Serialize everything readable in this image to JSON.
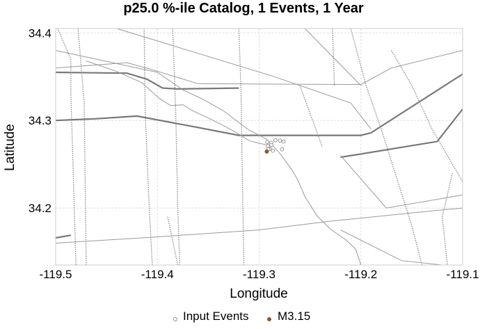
{
  "chart_data": {
    "type": "scatter",
    "title": "p25.0 %-ile Catalog, 1 Events, 1 Year",
    "xlabel": "Longitude",
    "ylabel": "Latitude",
    "xlim": [
      -119.5,
      -119.1
    ],
    "ylim": [
      34.135,
      34.405
    ],
    "grid": true,
    "legend_placement": "bottom-center",
    "x_ticks": [
      {
        "value": -119.5,
        "label": "-119.5"
      },
      {
        "value": -119.4,
        "label": "-119.4"
      },
      {
        "value": -119.3,
        "label": "-119.3"
      },
      {
        "value": -119.2,
        "label": "-119.2"
      },
      {
        "value": -119.1,
        "label": "-119.1"
      }
    ],
    "y_ticks": [
      {
        "value": 34.2,
        "label": "34.2"
      },
      {
        "value": 34.3,
        "label": "34.3"
      },
      {
        "value": 34.4,
        "label": "34.4"
      }
    ],
    "series": [
      {
        "name": "Input Events",
        "marker": "open-circle",
        "color": "#888888",
        "points": [
          [
            -119.292,
            34.2755
          ],
          [
            -119.288,
            34.2745
          ],
          [
            -119.284,
            34.2775
          ],
          [
            -119.2795,
            34.277
          ],
          [
            -119.276,
            34.276
          ],
          [
            -119.2915,
            34.271
          ],
          [
            -119.288,
            34.272
          ],
          [
            -119.2895,
            34.2675
          ],
          [
            -119.2865,
            34.2655
          ],
          [
            -119.2775,
            34.267
          ],
          [
            -119.291,
            34.2675
          ]
        ]
      },
      {
        "name": "M3.15",
        "marker": "filled-circle",
        "color": "#8b5a2b",
        "points": [
          [
            -119.2925,
            34.2645
          ]
        ]
      }
    ],
    "map_lines": [
      {
        "style": "thick",
        "points": [
          [
            -119.5,
            34.355
          ],
          [
            -119.43,
            34.354
          ],
          [
            -119.41,
            34.347
          ],
          [
            -119.395,
            34.337
          ],
          [
            -119.38,
            34.336
          ],
          [
            -119.32,
            34.337
          ]
        ]
      },
      {
        "style": "thick",
        "points": [
          [
            -119.5,
            34.3
          ],
          [
            -119.46,
            34.302
          ],
          [
            -119.42,
            34.305
          ],
          [
            -119.36,
            34.292
          ],
          [
            -119.32,
            34.283
          ],
          [
            -119.2,
            34.283
          ],
          [
            -119.19,
            34.286
          ],
          [
            -119.1,
            34.353
          ]
        ]
      },
      {
        "style": "thick",
        "points": [
          [
            -119.5,
            34.166
          ],
          [
            -119.485,
            34.169
          ]
        ]
      },
      {
        "style": "thick",
        "points": [
          [
            -119.22,
            34.258
          ],
          [
            -119.125,
            34.276
          ],
          [
            -119.1,
            34.313
          ]
        ]
      },
      {
        "style": "thin",
        "points": [
          [
            -119.5,
            34.38
          ],
          [
            -119.4,
            34.355
          ],
          [
            -119.375,
            34.335
          ],
          [
            -119.355,
            34.324
          ],
          [
            -119.335,
            34.311
          ],
          [
            -119.31,
            34.289
          ],
          [
            -119.293,
            34.279
          ],
          [
            -119.28,
            34.263
          ],
          [
            -119.268,
            34.244
          ],
          [
            -119.262,
            34.232
          ],
          [
            -119.255,
            34.213
          ],
          [
            -119.243,
            34.191
          ],
          [
            -119.23,
            34.176
          ],
          [
            -119.215,
            34.164
          ],
          [
            -119.205,
            34.153
          ],
          [
            -119.2,
            34.135
          ]
        ]
      },
      {
        "style": "thin",
        "points": [
          [
            -119.47,
            34.368
          ],
          [
            -119.44,
            34.356
          ],
          [
            -119.415,
            34.343
          ],
          [
            -119.398,
            34.325
          ],
          [
            -119.387,
            34.317
          ],
          [
            -119.375,
            34.318
          ],
          [
            -119.365,
            34.311
          ],
          [
            -119.352,
            34.304
          ],
          [
            -119.338,
            34.296
          ],
          [
            -119.322,
            34.286
          ],
          [
            -119.31,
            34.277
          ],
          [
            -119.3,
            34.274
          ],
          [
            -119.292,
            34.272
          ]
        ]
      },
      {
        "style": "thin",
        "points": [
          [
            -119.5,
            34.16
          ],
          [
            -119.415,
            34.166
          ],
          [
            -119.3,
            34.175
          ],
          [
            -119.23,
            34.185
          ],
          [
            -119.12,
            34.198
          ],
          [
            -119.1,
            34.2
          ]
        ]
      },
      {
        "style": "thin",
        "points": [
          [
            -119.5,
            34.36
          ],
          [
            -119.43,
            34.366
          ],
          [
            -119.405,
            34.358
          ],
          [
            -119.36,
            34.342
          ],
          [
            -119.2,
            34.341
          ],
          [
            -119.17,
            34.36
          ],
          [
            -119.1,
            34.38
          ]
        ]
      },
      {
        "style": "thin",
        "points": [
          [
            -119.44,
            34.405
          ],
          [
            -119.285,
            34.35
          ],
          [
            -119.21,
            34.32
          ],
          [
            -119.19,
            34.29
          ]
        ]
      },
      {
        "style": "thin",
        "points": [
          [
            -119.28,
            34.405
          ],
          [
            -119.255,
            34.405
          ],
          [
            -119.2,
            34.34
          ]
        ]
      },
      {
        "style": "thin",
        "points": [
          [
            -119.22,
            34.26
          ],
          [
            -119.175,
            34.2
          ],
          [
            -119.1,
            34.215
          ]
        ]
      },
      {
        "style": "thin",
        "points": [
          [
            -119.22,
            34.175
          ],
          [
            -119.16,
            34.14
          ],
          [
            -119.12,
            34.135
          ]
        ]
      },
      {
        "style": "dotted",
        "points": [
          [
            -119.478,
            34.405
          ],
          [
            -119.472,
            34.32
          ],
          [
            -119.47,
            34.135
          ]
        ]
      },
      {
        "style": "dotted",
        "points": [
          [
            -119.413,
            34.405
          ],
          [
            -119.412,
            34.31
          ],
          [
            -119.408,
            34.2
          ],
          [
            -119.405,
            34.135
          ]
        ]
      },
      {
        "style": "dotted",
        "points": [
          [
            -119.385,
            34.405
          ],
          [
            -119.382,
            34.31
          ],
          [
            -119.38,
            34.2
          ],
          [
            -119.378,
            34.135
          ]
        ]
      },
      {
        "style": "dotted",
        "points": [
          [
            -119.498,
            34.405
          ],
          [
            -119.485,
            34.37
          ],
          [
            -119.485,
            34.33
          ],
          [
            -119.48,
            34.135
          ]
        ]
      },
      {
        "style": "dotted",
        "points": [
          [
            -119.32,
            34.405
          ],
          [
            -119.318,
            34.34
          ],
          [
            -119.316,
            34.2
          ],
          [
            -119.315,
            34.135
          ]
        ]
      },
      {
        "style": "dotted",
        "points": [
          [
            -119.228,
            34.405
          ],
          [
            -119.226,
            34.34
          ]
        ]
      },
      {
        "style": "dotted",
        "points": [
          [
            -119.26,
            34.34
          ],
          [
            -119.238,
            34.27
          ]
        ]
      },
      {
        "style": "dotted",
        "points": [
          [
            -119.21,
            34.405
          ],
          [
            -119.195,
            34.34
          ],
          [
            -119.18,
            34.29
          ],
          [
            -119.15,
            34.18
          ],
          [
            -119.14,
            34.135
          ]
        ]
      },
      {
        "style": "dotted",
        "points": [
          [
            -119.17,
            34.38
          ],
          [
            -119.15,
            34.34
          ],
          [
            -119.13,
            34.29
          ],
          [
            -119.11,
            34.25
          ],
          [
            -119.1,
            34.23
          ]
        ]
      },
      {
        "style": "dotted",
        "points": [
          [
            -119.11,
            34.24
          ],
          [
            -119.12,
            34.19
          ],
          [
            -119.115,
            34.135
          ]
        ]
      },
      {
        "style": "dotted",
        "points": [
          [
            -119.39,
            34.19
          ],
          [
            -119.38,
            34.135
          ]
        ]
      }
    ]
  },
  "legend": [
    {
      "label": "Input Events",
      "marker": "open-circle",
      "color": "#888888"
    },
    {
      "label": "M3.15",
      "marker": "filled-circle",
      "color": "#8b5a2b"
    }
  ],
  "colors": {
    "grid": "#dddddd",
    "axis": "#cccccc",
    "map_thick": "#777777",
    "map_thin": "#999999",
    "map_dotted": "#888888"
  }
}
